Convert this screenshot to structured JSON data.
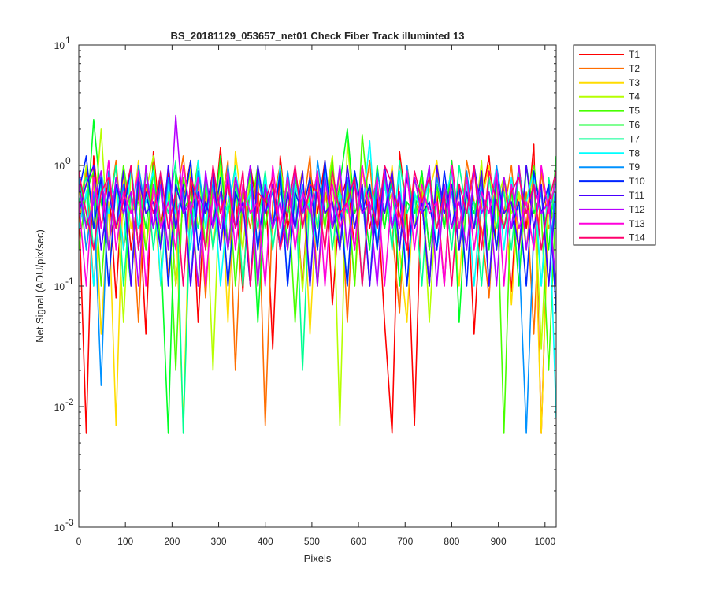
{
  "chart_data": {
    "type": "line",
    "title": "BS_20181129_053657_net01   Check Fiber     Track illuminted 13",
    "xlabel": "Pixels",
    "ylabel": "Net Signal (ADU/pix/sec)",
    "xlim": [
      0,
      1024
    ],
    "ylim": [
      0.001,
      10
    ],
    "yscale": "log",
    "grid": false,
    "legend_location": "outside-top-right",
    "x_ticks": [
      {
        "value": 0,
        "label": "0"
      },
      {
        "value": 100,
        "label": "100"
      },
      {
        "value": 200,
        "label": "200"
      },
      {
        "value": 300,
        "label": "300"
      },
      {
        "value": 400,
        "label": "400"
      },
      {
        "value": 500,
        "label": "500"
      },
      {
        "value": 600,
        "label": "600"
      },
      {
        "value": 700,
        "label": "700"
      },
      {
        "value": 800,
        "label": "800"
      },
      {
        "value": 900,
        "label": "900"
      },
      {
        "value": 1000,
        "label": "1000"
      }
    ],
    "y_ticks": [
      {
        "value": 0.001,
        "base": "10",
        "exp": "-3"
      },
      {
        "value": 0.01,
        "base": "10",
        "exp": "-2"
      },
      {
        "value": 0.1,
        "base": "10",
        "exp": "-1"
      },
      {
        "value": 1,
        "base": "10",
        "exp": "0"
      },
      {
        "value": 10,
        "base": "10",
        "exp": "1"
      }
    ],
    "series": [
      {
        "name": "T1",
        "color": "#ff0000"
      },
      {
        "name": "T2",
        "color": "#ff6e00"
      },
      {
        "name": "T3",
        "color": "#ffdc00"
      },
      {
        "name": "T4",
        "color": "#b6ff00"
      },
      {
        "name": "T5",
        "color": "#48ff00"
      },
      {
        "name": "T6",
        "color": "#00ff24"
      },
      {
        "name": "T7",
        "color": "#00ff92"
      },
      {
        "name": "T8",
        "color": "#00ffff"
      },
      {
        "name": "T9",
        "color": "#0092ff"
      },
      {
        "name": "T10",
        "color": "#0024ff"
      },
      {
        "name": "T11",
        "color": "#4800ff"
      },
      {
        "name": "T12",
        "color": "#b600ff"
      },
      {
        "name": "T13",
        "color": "#ff00dc"
      },
      {
        "name": "T14",
        "color": "#ff006e"
      }
    ],
    "x": [
      0,
      16,
      32,
      48,
      64,
      80,
      96,
      112,
      128,
      144,
      160,
      176,
      192,
      208,
      224,
      240,
      256,
      272,
      288,
      304,
      320,
      336,
      352,
      368,
      384,
      400,
      416,
      432,
      448,
      464,
      480,
      496,
      512,
      528,
      544,
      560,
      576,
      592,
      608,
      624,
      640,
      656,
      672,
      688,
      704,
      720,
      736,
      752,
      768,
      784,
      800,
      816,
      832,
      848,
      864,
      880,
      896,
      912,
      928,
      944,
      960,
      976,
      992,
      1008,
      1024
    ],
    "values_by_series": [
      [
        0.5,
        0.006,
        1.2,
        0.3,
        0.8,
        0.08,
        1.0,
        0.2,
        0.6,
        0.04,
        1.3,
        0.3,
        0.9,
        0.1,
        0.5,
        1.1,
        0.05,
        0.7,
        0.3,
        1.4,
        0.2,
        0.6,
        0.09,
        1.0,
        0.4,
        0.8,
        0.03,
        1.2,
        0.3,
        0.6,
        0.1,
        0.9,
        0.4,
        1.1,
        0.07,
        0.5,
        0.8,
        0.2,
        1.0,
        0.3,
        0.6,
        0.05,
        0.006,
        1.3,
        0.4,
        0.007,
        0.9,
        0.2,
        0.6,
        0.1,
        1.1,
        0.3,
        0.8,
        0.04,
        0.5,
        1.2,
        0.2,
        0.7,
        0.09,
        1.0,
        0.3,
        1.5,
        0.006,
        0.6,
        0.4
      ],
      [
        0.3,
        0.9,
        0.1,
        0.7,
        0.4,
        1.1,
        0.2,
        0.6,
        0.05,
        1.0,
        0.3,
        0.8,
        0.12,
        0.5,
        1.2,
        0.3,
        0.7,
        0.08,
        0.9,
        0.4,
        1.1,
        0.02,
        0.6,
        0.3,
        0.9,
        0.007,
        0.5,
        1.0,
        0.2,
        0.7,
        0.4,
        1.2,
        0.1,
        0.6,
        0.3,
        0.9,
        0.05,
        0.8,
        0.4,
        1.1,
        0.2,
        0.7,
        0.3,
        0.06,
        1.0,
        0.4,
        0.6,
        0.1,
        0.9,
        0.3,
        0.7,
        0.2,
        1.1,
        0.5,
        0.3,
        0.08,
        0.8,
        0.4,
        1.0,
        0.2,
        0.6,
        0.04,
        0.9,
        0.3,
        0.5
      ],
      [
        0.7,
        0.2,
        0.8,
        0.04,
        0.5,
        0.007,
        0.9,
        0.3,
        1.1,
        0.2,
        0.6,
        0.1,
        0.8,
        0.4,
        0.007,
        1.0,
        0.3,
        0.7,
        0.2,
        0.9,
        0.05,
        1.3,
        0.4,
        0.6,
        0.1,
        0.8,
        0.3,
        1.0,
        0.2,
        0.5,
        0.9,
        0.04,
        0.7,
        0.3,
        1.2,
        0.2,
        0.6,
        0.1,
        0.9,
        0.4,
        0.7,
        0.3,
        1.0,
        0.2,
        0.05,
        0.8,
        0.4,
        0.6,
        1.1,
        0.3,
        0.7,
        0.1,
        0.9,
        0.2,
        0.5,
        1.0,
        0.3,
        0.8,
        0.07,
        0.6,
        0.4,
        0.9,
        0.006,
        0.5,
        0.3
      ],
      [
        0.4,
        1.0,
        0.3,
        2.0,
        0.2,
        0.7,
        0.05,
        0.9,
        0.3,
        0.6,
        1.2,
        0.2,
        0.8,
        0.1,
        0.5,
        0.9,
        0.3,
        0.7,
        0.02,
        1.1,
        0.4,
        0.6,
        0.2,
        0.9,
        0.1,
        0.7,
        0.3,
        1.0,
        0.4,
        0.6,
        0.09,
        0.8,
        0.3,
        0.5,
        1.2,
        0.007,
        1.6,
        0.3,
        0.7,
        0.1,
        0.9,
        0.4,
        0.6,
        0.2,
        1.0,
        0.3,
        0.8,
        0.05,
        0.6,
        0.4,
        0.9,
        0.2,
        0.7,
        0.3,
        1.1,
        0.1,
        0.5,
        0.8,
        0.4,
        0.6,
        0.2,
        0.9,
        0.03,
        0.7,
        0.4
      ],
      [
        0.2,
        0.6,
        0.9,
        0.1,
        0.7,
        0.3,
        1.0,
        0.4,
        0.5,
        0.2,
        0.9,
        0.3,
        0.6,
        0.02,
        0.8,
        0.4,
        1.1,
        0.2,
        0.7,
        0.3,
        0.9,
        0.1,
        0.6,
        0.4,
        1.0,
        0.3,
        0.7,
        0.2,
        0.8,
        0.05,
        0.6,
        0.4,
        0.9,
        0.3,
        1.1,
        0.2,
        0.7,
        0.1,
        1.8,
        0.4,
        0.6,
        0.3,
        0.8,
        0.2,
        0.9,
        0.4,
        0.5,
        0.1,
        0.7,
        0.3,
        1.0,
        0.2,
        0.6,
        0.4,
        0.8,
        0.1,
        0.9,
        0.006,
        0.7,
        0.3,
        0.5,
        1.0,
        0.4,
        0.02,
        0.6
      ],
      [
        0.9,
        0.3,
        2.4,
        0.5,
        0.2,
        0.8,
        0.4,
        0.1,
        0.7,
        0.3,
        1.0,
        0.2,
        0.006,
        0.9,
        0.4,
        0.6,
        0.1,
        0.8,
        0.3,
        1.2,
        0.2,
        0.7,
        0.4,
        0.9,
        0.05,
        0.6,
        0.3,
        1.0,
        0.2,
        0.8,
        0.4,
        0.5,
        0.1,
        0.9,
        0.3,
        0.7,
        2.0,
        0.4,
        0.6,
        0.2,
        1.0,
        0.3,
        0.8,
        0.1,
        0.5,
        0.4,
        0.9,
        0.2,
        0.7,
        0.3,
        1.1,
        0.05,
        0.6,
        0.4,
        0.8,
        0.2,
        0.9,
        0.3,
        0.7,
        0.1,
        1.0,
        0.4,
        0.6,
        0.2,
        1.2
      ],
      [
        0.5,
        0.8,
        0.2,
        0.7,
        0.4,
        1.0,
        0.1,
        0.6,
        0.3,
        0.9,
        0.2,
        0.7,
        0.4,
        1.1,
        0.006,
        0.5,
        0.3,
        0.8,
        0.2,
        0.6,
        0.4,
        1.0,
        0.1,
        0.7,
        0.3,
        0.9,
        0.2,
        0.6,
        0.4,
        0.8,
        0.02,
        0.7,
        0.3,
        1.0,
        0.2,
        0.6,
        0.4,
        0.9,
        0.1,
        0.7,
        0.3,
        0.8,
        0.2,
        1.1,
        0.4,
        0.6,
        0.1,
        0.9,
        0.3,
        0.7,
        0.2,
        1.0,
        0.4,
        0.5,
        0.1,
        0.8,
        0.3,
        0.6,
        0.2,
        0.9,
        0.4,
        0.7,
        0.1,
        0.8,
        0.3
      ],
      [
        0.3,
        0.6,
        0.1,
        0.9,
        0.4,
        0.7,
        0.2,
        1.0,
        0.3,
        0.5,
        0.9,
        0.1,
        0.7,
        0.4,
        0.6,
        0.2,
        1.1,
        0.3,
        0.8,
        0.1,
        0.5,
        0.9,
        0.4,
        0.6,
        0.2,
        0.8,
        0.3,
        1.0,
        0.1,
        0.7,
        0.4,
        0.5,
        0.2,
        0.9,
        0.3,
        0.6,
        0.1,
        0.8,
        0.4,
        1.6,
        0.2,
        0.7,
        0.3,
        0.9,
        0.1,
        0.6,
        0.4,
        0.8,
        0.2,
        0.5,
        0.9,
        0.3,
        0.7,
        0.1,
        0.6,
        0.4,
        1.0,
        0.2,
        0.8,
        0.3,
        0.5,
        0.9,
        0.1,
        0.7,
        0.008
      ],
      [
        0.8,
        0.2,
        0.6,
        0.015,
        0.9,
        0.3,
        0.7,
        0.1,
        1.0,
        0.4,
        0.5,
        0.2,
        0.8,
        0.3,
        0.6,
        0.1,
        0.9,
        0.4,
        0.7,
        0.2,
        1.0,
        0.3,
        0.5,
        0.1,
        0.8,
        0.4,
        0.6,
        0.2,
        0.9,
        0.3,
        0.7,
        0.1,
        1.1,
        0.4,
        0.5,
        0.2,
        0.8,
        0.3,
        0.6,
        0.1,
        0.9,
        0.4,
        0.7,
        0.2,
        1.0,
        0.3,
        0.5,
        0.1,
        0.8,
        0.4,
        0.6,
        0.2,
        0.9,
        0.3,
        0.7,
        0.1,
        1.0,
        0.4,
        0.5,
        0.2,
        0.006,
        0.3,
        0.6,
        0.1,
        0.9
      ],
      [
        0.6,
        1.2,
        0.3,
        0.8,
        0.1,
        0.7,
        0.4,
        1.0,
        0.2,
        0.6,
        0.3,
        0.9,
        0.1,
        0.7,
        0.4,
        1.1,
        0.2,
        0.5,
        0.3,
        0.8,
        0.1,
        0.6,
        0.4,
        1.0,
        0.2,
        0.7,
        0.3,
        0.9,
        0.1,
        0.6,
        0.4,
        0.8,
        0.2,
        1.1,
        0.3,
        0.5,
        0.1,
        0.9,
        0.4,
        0.7,
        0.2,
        1.0,
        0.3,
        0.6,
        0.1,
        0.8,
        0.4,
        0.5,
        0.2,
        0.9,
        0.3,
        0.7,
        0.1,
        1.0,
        0.4,
        0.6,
        0.2,
        0.8,
        0.3,
        0.5,
        0.1,
        0.9,
        0.4,
        0.7,
        0.06
      ],
      [
        0.4,
        0.7,
        1.0,
        0.2,
        0.6,
        0.3,
        0.9,
        0.1,
        0.8,
        0.4,
        0.5,
        0.2,
        1.0,
        0.3,
        0.7,
        0.1,
        0.6,
        0.4,
        0.9,
        0.2,
        0.8,
        0.3,
        0.5,
        0.1,
        1.0,
        0.4,
        0.7,
        0.2,
        0.6,
        0.3,
        0.9,
        0.1,
        0.8,
        0.4,
        0.5,
        0.2,
        1.0,
        0.3,
        0.7,
        0.1,
        0.6,
        0.4,
        0.9,
        0.2,
        0.8,
        0.3,
        0.5,
        0.1,
        1.0,
        0.4,
        0.7,
        0.2,
        0.6,
        0.3,
        0.9,
        0.1,
        0.8,
        0.4,
        0.5,
        0.2,
        1.0,
        0.3,
        0.7,
        0.1,
        0.6
      ],
      [
        0.7,
        0.3,
        0.5,
        0.9,
        0.2,
        0.8,
        0.4,
        0.6,
        0.1,
        1.0,
        0.3,
        0.7,
        0.2,
        2.6,
        0.4,
        0.5,
        0.1,
        0.9,
        0.3,
        0.6,
        0.2,
        0.8,
        0.4,
        1.0,
        0.1,
        0.7,
        0.3,
        0.5,
        0.2,
        0.9,
        0.4,
        0.6,
        0.1,
        0.8,
        0.3,
        1.0,
        0.2,
        0.7,
        0.4,
        0.5,
        0.1,
        0.9,
        0.3,
        0.6,
        0.2,
        0.8,
        0.4,
        1.0,
        0.1,
        0.7,
        0.3,
        0.5,
        0.2,
        0.9,
        0.4,
        0.6,
        0.1,
        0.8,
        0.3,
        1.0,
        0.2,
        0.7,
        0.4,
        0.5,
        0.1
      ],
      [
        0.5,
        0.1,
        0.8,
        0.3,
        1.1,
        0.2,
        0.6,
        0.4,
        0.9,
        0.1,
        0.7,
        0.3,
        0.5,
        0.2,
        1.0,
        0.4,
        0.8,
        0.1,
        0.6,
        0.3,
        0.9,
        0.2,
        0.7,
        0.4,
        0.5,
        0.1,
        1.0,
        0.3,
        0.8,
        0.2,
        0.6,
        0.4,
        0.9,
        0.1,
        0.7,
        0.3,
        0.5,
        0.2,
        1.0,
        0.4,
        0.8,
        0.1,
        0.6,
        0.3,
        0.9,
        0.2,
        0.7,
        0.4,
        0.5,
        0.1,
        1.0,
        0.3,
        0.8,
        0.2,
        0.6,
        0.4,
        0.9,
        0.1,
        0.7,
        0.3,
        0.5,
        0.2,
        1.0,
        0.4,
        0.8
      ],
      [
        0.9,
        0.4,
        0.2,
        0.6,
        0.8,
        0.3,
        0.5,
        1.0,
        0.2,
        0.7,
        0.4,
        0.9,
        0.3,
        0.6,
        0.1,
        0.8,
        0.5,
        0.2,
        1.0,
        0.4,
        0.7,
        0.3,
        0.9,
        0.1,
        0.6,
        0.5,
        0.8,
        0.2,
        0.4,
        1.0,
        0.3,
        0.7,
        0.6,
        0.2,
        0.9,
        0.4,
        0.5,
        0.8,
        0.1,
        0.6,
        0.3,
        1.0,
        0.7,
        0.4,
        0.2,
        0.9,
        0.5,
        0.8,
        0.3,
        0.6,
        0.1,
        0.7,
        0.4,
        1.0,
        0.2,
        0.9,
        0.5,
        0.3,
        0.6,
        0.8,
        0.4,
        0.7,
        0.2,
        0.5,
        0.9
      ]
    ]
  }
}
